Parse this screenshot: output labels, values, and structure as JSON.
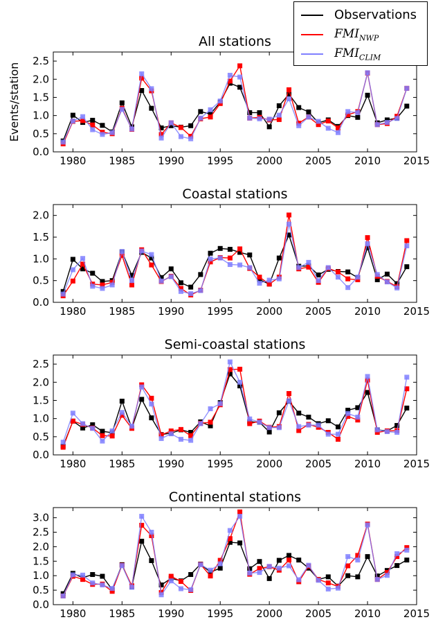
{
  "legend": {
    "items": [
      {
        "label": "Observations",
        "color": "#000000"
      },
      {
        "label_main": "FMI",
        "label_sub": "NWP",
        "color": "#ff0000"
      },
      {
        "label_main": "FMI",
        "label_sub": "CLIM",
        "color": "#7f7fff"
      }
    ],
    "placement": "top-right"
  },
  "chart_data": [
    {
      "type": "line",
      "title": "All stations",
      "ylabel": "Events/station",
      "xlabel": "",
      "xlim": [
        1978,
        2015
      ],
      "ylim": [
        0,
        2.75
      ],
      "yticks": [
        "0.0",
        "0.5",
        "1.0",
        "1.5",
        "2.0",
        "2.5"
      ],
      "xticks": [
        "1980",
        "1985",
        "1990",
        "1995",
        "2000",
        "2005",
        "2010",
        "2015"
      ],
      "x": [
        1979,
        1980,
        1981,
        1982,
        1983,
        1984,
        1985,
        1986,
        1987,
        1988,
        1989,
        1990,
        1991,
        1992,
        1993,
        1994,
        1995,
        1996,
        1997,
        1998,
        1999,
        2000,
        2001,
        2002,
        2003,
        2004,
        2005,
        2006,
        2007,
        2008,
        2009,
        2010,
        2011,
        2012,
        2013,
        2014
      ],
      "series": [
        {
          "name": "Observations",
          "color": "#000000",
          "values": [
            0.3,
            1.01,
            0.81,
            0.87,
            0.73,
            0.55,
            1.35,
            0.69,
            1.69,
            1.2,
            0.66,
            0.72,
            0.68,
            0.72,
            1.11,
            1.04,
            1.37,
            1.89,
            1.78,
            1.08,
            1.08,
            0.69,
            1.27,
            1.59,
            1.22,
            1.1,
            0.8,
            0.88,
            0.7,
            1.0,
            0.95,
            1.56,
            0.8,
            0.88,
            0.93,
            1.26
          ]
        },
        {
          "name": "FMI_NWP",
          "color": "#ff0000",
          "values": [
            0.22,
            0.84,
            0.86,
            0.74,
            0.54,
            0.5,
            1.2,
            0.62,
            2.03,
            1.68,
            0.48,
            0.8,
            0.67,
            0.43,
            0.91,
            0.96,
            1.33,
            1.95,
            2.37,
            0.93,
            0.95,
            0.88,
            0.89,
            1.71,
            0.79,
            0.96,
            0.75,
            0.85,
            0.66,
            1.02,
            1.11,
            2.17,
            0.75,
            0.78,
            0.98,
            1.75
          ]
        },
        {
          "name": "FMI_CLIM",
          "color": "#7f7fff",
          "values": [
            0.27,
            0.85,
            0.97,
            0.61,
            0.48,
            0.53,
            1.17,
            0.63,
            2.15,
            1.74,
            0.38,
            0.8,
            0.42,
            0.36,
            0.93,
            1.16,
            1.4,
            2.11,
            2.06,
            0.93,
            0.91,
            0.9,
            1.01,
            1.46,
            0.72,
            0.96,
            0.84,
            0.65,
            0.53,
            1.11,
            1.08,
            2.18,
            0.75,
            0.81,
            0.92,
            1.75
          ]
        }
      ]
    },
    {
      "type": "line",
      "title": "Coastal stations",
      "ylabel": "",
      "xlabel": "",
      "xlim": [
        1978,
        2015
      ],
      "ylim": [
        0,
        2.25
      ],
      "yticks": [
        "0.0",
        "0.5",
        "1.0",
        "1.5",
        "2.0"
      ],
      "xticks": [
        "1980",
        "1985",
        "1990",
        "1995",
        "2000",
        "2005",
        "2010",
        "2015"
      ],
      "x": [
        1979,
        1980,
        1981,
        1982,
        1983,
        1984,
        1985,
        1986,
        1987,
        1988,
        1989,
        1990,
        1991,
        1992,
        1993,
        1994,
        1995,
        1996,
        1997,
        1998,
        1999,
        2000,
        2001,
        2002,
        2003,
        2004,
        2005,
        2006,
        2007,
        2008,
        2009,
        2010,
        2011,
        2012,
        2013,
        2014
      ],
      "series": [
        {
          "name": "Observations",
          "color": "#000000",
          "values": [
            0.25,
            0.99,
            0.77,
            0.67,
            0.48,
            0.5,
            1.16,
            0.62,
            1.15,
            1.02,
            0.57,
            0.77,
            0.45,
            0.35,
            0.64,
            1.13,
            1.24,
            1.22,
            1.15,
            1.09,
            0.52,
            0.42,
            1.02,
            1.55,
            0.83,
            0.84,
            0.63,
            0.76,
            0.71,
            0.7,
            0.57,
            1.26,
            0.52,
            0.65,
            0.43,
            0.82
          ]
        },
        {
          "name": "FMI_NWP",
          "color": "#ff0000",
          "values": [
            0.15,
            0.49,
            0.88,
            0.42,
            0.4,
            0.46,
            1.08,
            0.4,
            1.21,
            0.86,
            0.48,
            0.6,
            0.32,
            0.17,
            0.28,
            0.93,
            1.03,
            1.02,
            1.23,
            0.78,
            0.58,
            0.42,
            0.58,
            2.01,
            0.77,
            0.81,
            0.46,
            0.78,
            0.7,
            0.54,
            0.52,
            1.49,
            0.6,
            0.48,
            0.36,
            1.42
          ]
        },
        {
          "name": "FMI_CLIM",
          "color": "#7f7fff",
          "values": [
            0.19,
            0.75,
            1.01,
            0.37,
            0.32,
            0.4,
            1.17,
            0.5,
            1.18,
            1.1,
            0.49,
            0.59,
            0.25,
            0.2,
            0.27,
            1.0,
            1.02,
            0.87,
            0.86,
            0.8,
            0.44,
            0.51,
            0.54,
            1.8,
            0.8,
            0.92,
            0.5,
            0.8,
            0.58,
            0.34,
            0.58,
            1.35,
            0.64,
            0.47,
            0.33,
            1.3
          ]
        }
      ]
    },
    {
      "type": "line",
      "title": "Semi-coastal stations",
      "ylabel": "",
      "xlabel": "",
      "xlim": [
        1978,
        2015
      ],
      "ylim": [
        0,
        2.75
      ],
      "yticks": [
        "0.0",
        "0.5",
        "1.0",
        "1.5",
        "2.0",
        "2.5"
      ],
      "xticks": [
        "1980",
        "1985",
        "1990",
        "1995",
        "2000",
        "2005",
        "2010",
        "2015"
      ],
      "x": [
        1979,
        1980,
        1981,
        1982,
        1983,
        1984,
        1985,
        1986,
        1987,
        1988,
        1989,
        1990,
        1991,
        1992,
        1993,
        1994,
        1995,
        1996,
        1997,
        1998,
        1999,
        2000,
        2001,
        2002,
        2003,
        2004,
        2005,
        2006,
        2007,
        2008,
        2009,
        2010,
        2011,
        2012,
        2013,
        2014
      ],
      "series": [
        {
          "name": "Observations",
          "color": "#000000",
          "values": [
            0.24,
            0.93,
            0.74,
            0.83,
            0.65,
            0.61,
            1.48,
            0.74,
            1.53,
            1.02,
            0.56,
            0.6,
            0.69,
            0.62,
            0.91,
            0.8,
            1.44,
            2.23,
            1.9,
            0.91,
            0.9,
            0.63,
            1.16,
            1.48,
            1.15,
            1.04,
            0.86,
            0.94,
            0.77,
            1.23,
            1.3,
            1.72,
            0.69,
            0.66,
            0.81,
            1.29
          ]
        },
        {
          "name": "FMI_NWP",
          "color": "#ff0000",
          "values": [
            0.21,
            0.93,
            0.84,
            0.74,
            0.53,
            0.52,
            1.09,
            0.73,
            1.93,
            1.56,
            0.55,
            0.66,
            0.7,
            0.53,
            0.87,
            0.9,
            1.38,
            2.35,
            2.36,
            0.86,
            0.93,
            0.76,
            0.78,
            1.69,
            0.67,
            0.84,
            0.76,
            0.62,
            0.43,
            1.06,
            0.96,
            2.06,
            0.62,
            0.66,
            0.67,
            1.82
          ]
        },
        {
          "name": "FMI_CLIM",
          "color": "#7f7fff",
          "values": [
            0.35,
            1.15,
            0.86,
            0.73,
            0.38,
            0.66,
            1.17,
            0.79,
            1.87,
            1.4,
            0.45,
            0.58,
            0.43,
            0.4,
            0.86,
            1.27,
            1.41,
            2.56,
            2.0,
            0.99,
            0.9,
            0.75,
            0.75,
            1.49,
            0.78,
            0.82,
            0.82,
            0.57,
            0.57,
            1.14,
            1.04,
            2.16,
            0.69,
            0.64,
            0.62,
            2.14
          ]
        }
      ]
    },
    {
      "type": "line",
      "title": "Continental stations",
      "ylabel": "",
      "xlabel": "",
      "xlim": [
        1978,
        2015
      ],
      "ylim": [
        0,
        3.35
      ],
      "yticks": [
        "0.0",
        "0.5",
        "1.0",
        "1.5",
        "2.0",
        "2.5",
        "3.0"
      ],
      "xticks": [
        "1980",
        "1985",
        "1990",
        "1995",
        "2000",
        "2005",
        "2010",
        "2015"
      ],
      "x": [
        1979,
        1980,
        1981,
        1982,
        1983,
        1984,
        1985,
        1986,
        1987,
        1988,
        1989,
        1990,
        1991,
        1992,
        1993,
        1994,
        1995,
        1996,
        1997,
        1998,
        1999,
        2000,
        2001,
        2002,
        2003,
        2004,
        2005,
        2006,
        2007,
        2008,
        2009,
        2010,
        2011,
        2012,
        2013,
        2014
      ],
      "series": [
        {
          "name": "Observations",
          "color": "#000000",
          "values": [
            0.38,
            1.08,
            0.93,
            1.04,
            0.98,
            0.52,
            1.38,
            0.62,
            2.19,
            1.52,
            0.68,
            0.91,
            0.82,
            1.04,
            1.4,
            1.12,
            1.26,
            2.15,
            2.13,
            1.24,
            1.49,
            0.9,
            1.53,
            1.7,
            1.54,
            1.26,
            0.87,
            0.96,
            0.64,
            1.0,
            0.96,
            1.66,
            0.99,
            1.18,
            1.35,
            1.54
          ]
        },
        {
          "name": "FMI_NWP",
          "color": "#ff0000",
          "values": [
            0.3,
            0.98,
            0.87,
            0.7,
            0.71,
            0.46,
            1.36,
            0.65,
            2.74,
            2.38,
            0.42,
            0.98,
            0.8,
            0.49,
            1.39,
            0.99,
            1.53,
            2.28,
            3.2,
            1.05,
            1.25,
            1.31,
            1.19,
            1.54,
            0.79,
            1.33,
            0.87,
            0.75,
            0.63,
            1.34,
            1.7,
            2.78,
            0.87,
            1.11,
            1.66,
            1.97
          ]
        },
        {
          "name": "FMI_CLIM",
          "color": "#7f7fff",
          "values": [
            0.3,
            1.03,
            1.02,
            0.75,
            0.68,
            0.56,
            1.35,
            0.6,
            3.05,
            2.5,
            0.34,
            0.82,
            0.55,
            0.52,
            1.38,
            1.19,
            1.41,
            2.56,
            3.05,
            1.09,
            1.11,
            1.32,
            1.26,
            1.34,
            0.86,
            1.36,
            0.84,
            0.54,
            0.57,
            1.66,
            1.54,
            2.75,
            0.87,
            1.01,
            1.76,
            1.88
          ]
        }
      ]
    }
  ]
}
